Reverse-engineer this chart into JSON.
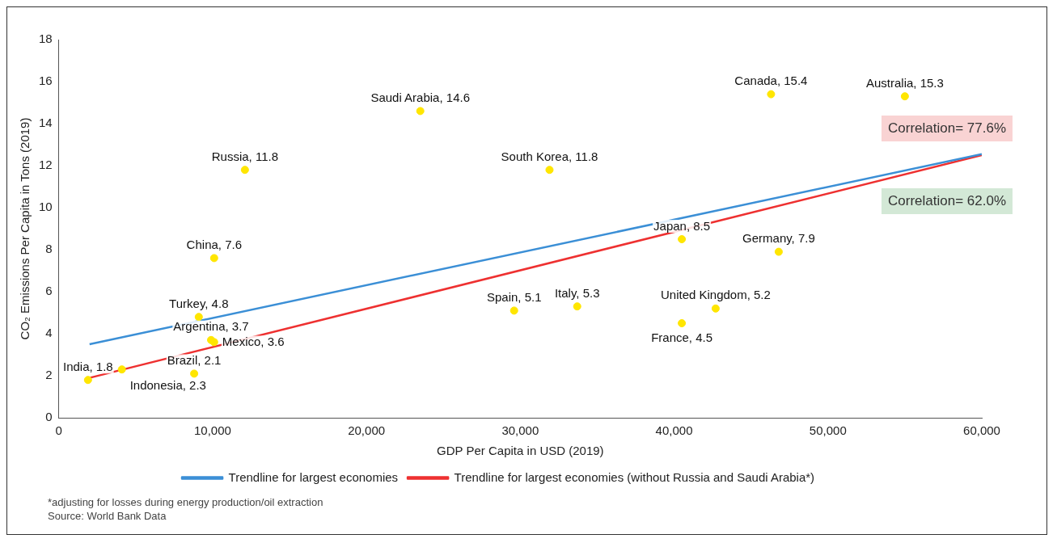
{
  "chart_data": {
    "type": "scatter",
    "xlabel": "GDP Per Capita in USD (2019)",
    "ylabel": "CO₂ Emissions Per Capita in Tons (2019)",
    "xlim": [
      0,
      60000
    ],
    "xticks": [
      0,
      {
        "value": 10000,
        "label": "10,000"
      },
      {
        "value": 20000,
        "label": "20,000"
      },
      {
        "value": 30000,
        "label": "30,000"
      },
      {
        "value": 40000,
        "label": "40,000"
      },
      {
        "value": 50000,
        "label": "50,000"
      },
      {
        "value": 60000,
        "label": "60,000"
      }
    ],
    "ylim": [
      0,
      18
    ],
    "yticks": [
      0,
      2,
      4,
      6,
      8,
      10,
      12,
      14,
      16,
      18
    ],
    "grid": false,
    "legend": "bottom",
    "series": [
      {
        "type": "scatter",
        "color": "#ffe600",
        "marker": "circle",
        "x": [
          1900,
          4100,
          8800,
          9100,
          9900,
          10100,
          10100,
          12100,
          23500,
          29600,
          31900,
          33700,
          40500,
          40500,
          42700,
          46300,
          46800,
          55000
        ],
        "values": [
          1.8,
          2.3,
          2.1,
          4.8,
          3.7,
          3.6,
          7.6,
          11.8,
          14.6,
          5.1,
          11.8,
          5.3,
          8.5,
          4.5,
          5.2,
          15.4,
          7.9,
          15.3
        ],
        "value_labels": [
          "India, 1.8",
          "Indonesia, 2.3",
          "Brazil, 2.1",
          "Turkey, 4.8",
          "Argentina, 3.7",
          "Mexico, 3.6",
          "China, 7.6",
          "Russia, 11.8",
          "Saudi Arabia, 14.6",
          "Spain, 5.1",
          "South Korea, 11.8",
          "Italy, 5.3",
          "Japan, 8.5",
          "France, 4.5",
          "United Kingdom, 5.2",
          "Canada, 15.4",
          "Germany, 7.9",
          "Australia, 15.3"
        ]
      },
      {
        "type": "line",
        "name": "Trendline for largest economies",
        "color": "#3b8fd6",
        "marker": "none",
        "x": [
          2000,
          60000
        ],
        "values": [
          3.5,
          12.55
        ]
      },
      {
        "type": "line",
        "name": "Trendline for largest economies (without Russia and Saudi Arabia*)",
        "color": "#ee3030",
        "marker": "none",
        "x": [
          2000,
          60000
        ],
        "values": [
          1.9,
          12.5
        ]
      }
    ],
    "annotations": [
      "Correlation= 77.6%",
      "Correlation= 62.0%",
      "*adjusting for losses during energy production/oil extraction",
      "Source: World Bank Data"
    ]
  }
}
